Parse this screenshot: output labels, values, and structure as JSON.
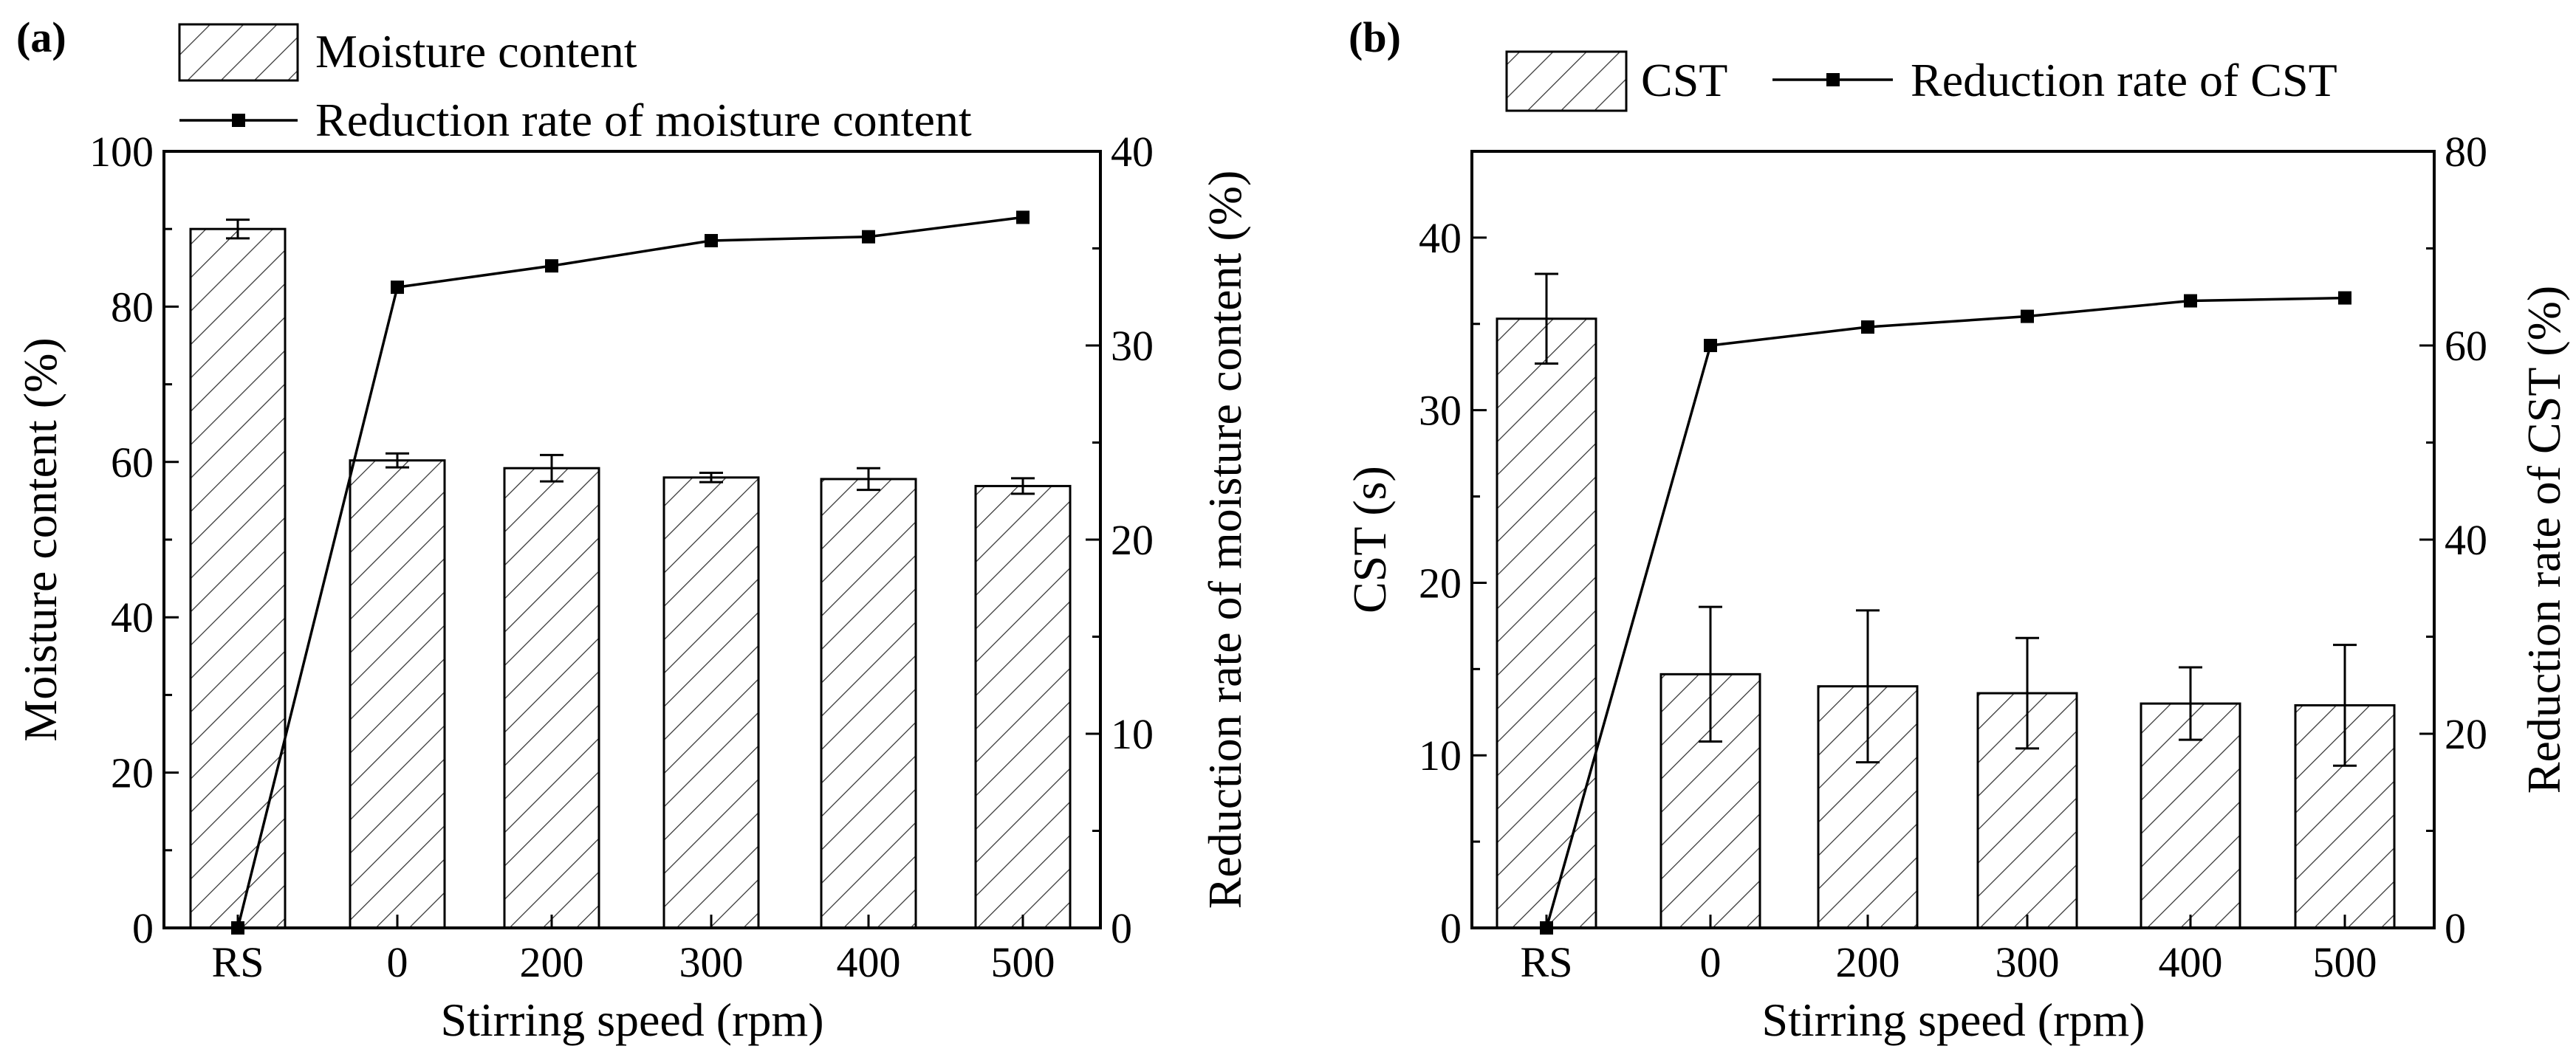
{
  "chart_data": [
    {
      "panel_label": "(a)",
      "type": "bar+line",
      "categories": [
        "RS",
        "0",
        "200",
        "300",
        "400",
        "500"
      ],
      "xlabel": "Stirring speed (rpm)",
      "ylabel_left": "Moisture content (%)",
      "ylabel_right": "Reduction rate of moisture content (%)",
      "ylim_left": [
        0,
        100
      ],
      "yticks_left": [
        "0",
        "20",
        "40",
        "60",
        "80",
        "100"
      ],
      "ylim_right": [
        0,
        40
      ],
      "yticks_right": [
        "0",
        "10",
        "20",
        "30",
        "40"
      ],
      "legend_position": "top",
      "bar_series": {
        "name": "Moisture content",
        "values": [
          90.0,
          60.2,
          59.2,
          58.0,
          57.8,
          56.9
        ],
        "errors": [
          1.2,
          0.9,
          1.7,
          0.6,
          1.4,
          1.0
        ]
      },
      "line_series": {
        "name": "Reduction rate of moisture content",
        "values": [
          0.0,
          33.0,
          34.1,
          35.4,
          35.6,
          36.6
        ]
      }
    },
    {
      "panel_label": "(b)",
      "type": "bar+line",
      "categories": [
        "RS",
        "0",
        "200",
        "300",
        "400",
        "500"
      ],
      "xlabel": "Stirring speed (rpm)",
      "ylabel_left": "CST (s)",
      "ylabel_right": "Reduction rate of CST (%)",
      "ylim_left": [
        0,
        45
      ],
      "yticks_left": [
        "0",
        "10",
        "20",
        "30",
        "40"
      ],
      "ylim_right": [
        0,
        80
      ],
      "yticks_right": [
        "0",
        "20",
        "40",
        "60",
        "80"
      ],
      "legend_position": "top",
      "bar_series": {
        "name": "CST",
        "values": [
          35.3,
          14.7,
          14.0,
          13.6,
          13.0,
          12.9
        ],
        "errors": [
          2.6,
          3.9,
          4.4,
          3.2,
          2.1,
          3.5
        ]
      },
      "line_series": {
        "name": "Reduction rate of CST",
        "values": [
          0.0,
          60.0,
          61.9,
          63.0,
          64.6,
          64.9
        ]
      }
    }
  ]
}
